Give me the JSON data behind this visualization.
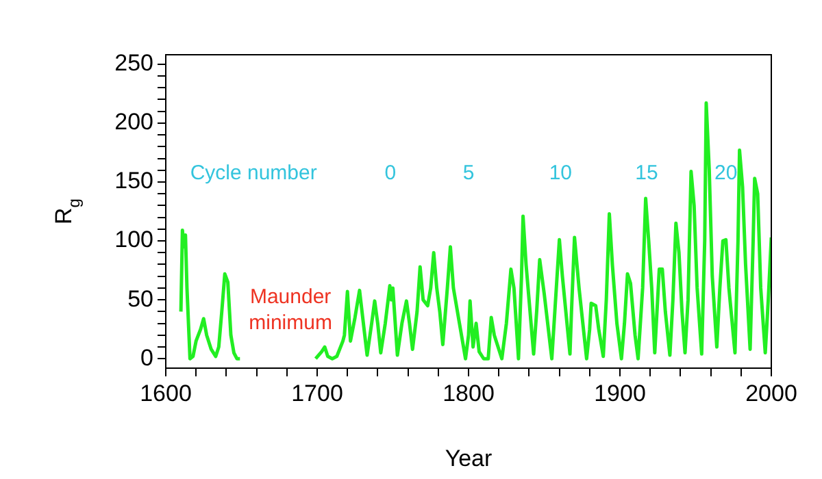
{
  "chart_data": {
    "type": "line",
    "xlabel": "Year",
    "ylabel": "R$_{g}$",
    "x": [
      1610,
      1611,
      1612,
      1613,
      1614,
      1616,
      1618,
      1620,
      1623,
      1625,
      1627,
      1630,
      1633,
      1635,
      1637,
      1639,
      1641,
      1643,
      1645,
      1647,
      1649,
      1675,
      1699,
      1703,
      1705,
      1707,
      1710,
      1713,
      1717,
      1718,
      1720,
      1722,
      1725,
      1728,
      1731,
      1733,
      1736,
      1738,
      1740,
      1742,
      1745,
      1748,
      1749,
      1750,
      1753,
      1756,
      1759,
      1761,
      1763,
      1766,
      1768,
      1770,
      1773,
      1775,
      1777,
      1779,
      1781,
      1783,
      1786,
      1788,
      1790,
      1794,
      1798,
      1800,
      1801,
      1803,
      1805,
      1807,
      1810,
      1813,
      1815,
      1817,
      1822,
      1825,
      1828,
      1830,
      1833,
      1835,
      1836,
      1838,
      1843,
      1845,
      1847,
      1850,
      1855,
      1857,
      1860,
      1862,
      1867,
      1868,
      1870,
      1873,
      1878,
      1880,
      1881,
      1884,
      1886,
      1889,
      1891,
      1893,
      1895,
      1898,
      1901,
      1903,
      1905,
      1907,
      1910,
      1912,
      1915,
      1917,
      1919,
      1921,
      1923,
      1926,
      1928,
      1930,
      1933,
      1935,
      1937,
      1939,
      1941,
      1943,
      1945,
      1947,
      1949,
      1951,
      1954,
      1956,
      1957,
      1959,
      1961,
      1964,
      1966,
      1968,
      1970,
      1972,
      1976,
      1978,
      1979,
      1981,
      1983,
      1986,
      1988,
      1989,
      1991,
      1993,
      1996,
      1998,
      2000
    ],
    "series": [
      {
        "color": "#22ee22",
        "values": [
          40,
          109,
          95,
          105,
          60,
          0,
          2,
          15,
          25,
          34,
          20,
          8,
          2,
          10,
          40,
          72,
          65,
          20,
          5,
          0,
          0,
          null,
          0,
          6,
          10,
          2,
          0,
          2,
          15,
          20,
          57,
          15,
          35,
          58,
          25,
          3,
          30,
          49,
          30,
          5,
          30,
          62,
          50,
          60,
          3,
          30,
          49,
          30,
          8,
          40,
          78,
          50,
          45,
          60,
          90,
          60,
          40,
          12,
          60,
          95,
          60,
          30,
          0,
          20,
          49,
          10,
          30,
          6,
          0,
          0,
          35,
          20,
          0,
          30,
          76,
          60,
          0,
          70,
          121,
          80,
          4,
          40,
          84,
          55,
          0,
          40,
          101,
          70,
          4,
          40,
          103,
          60,
          0,
          25,
          47,
          45,
          25,
          2,
          50,
          123,
          80,
          30,
          0,
          30,
          72,
          64,
          20,
          0,
          60,
          136,
          100,
          60,
          5,
          76,
          76,
          40,
          3,
          50,
          115,
          90,
          40,
          5,
          50,
          159,
          130,
          60,
          4,
          100,
          217,
          160,
          70,
          10,
          60,
          100,
          101,
          60,
          5,
          100,
          177,
          146,
          80,
          8,
          100,
          153,
          140,
          60,
          5,
          50,
          103
        ]
      }
    ],
    "xlim": [
      1600,
      2000
    ],
    "xticks": [
      1600,
      {
        "value": 1620,
        "label": null
      },
      {
        "value": 1640,
        "label": null
      },
      {
        "value": 1660,
        "label": null
      },
      {
        "value": 1680,
        "label": null
      },
      1700,
      {
        "value": 1720,
        "label": null
      },
      {
        "value": 1740,
        "label": null
      },
      {
        "value": 1760,
        "label": null
      },
      {
        "value": 1780,
        "label": null
      },
      1800,
      {
        "value": 1820,
        "label": null
      },
      {
        "value": 1840,
        "label": null
      },
      {
        "value": 1860,
        "label": null
      },
      {
        "value": 1880,
        "label": null
      },
      1900,
      {
        "value": 1920,
        "label": null
      },
      {
        "value": 1940,
        "label": null
      },
      {
        "value": 1960,
        "label": null
      },
      {
        "value": 1980,
        "label": null
      },
      2000
    ],
    "ylim": [
      -8,
      258
    ],
    "yticks": [
      0,
      {
        "value": 10,
        "label": null
      },
      {
        "value": 20,
        "label": null
      },
      {
        "value": 30,
        "label": null
      },
      {
        "value": 40,
        "label": null
      },
      50,
      {
        "value": 60,
        "label": null
      },
      {
        "value": 70,
        "label": null
      },
      {
        "value": 80,
        "label": null
      },
      {
        "value": 90,
        "label": null
      },
      100,
      {
        "value": 110,
        "label": null
      },
      {
        "value": 120,
        "label": null
      },
      {
        "value": 130,
        "label": null
      },
      {
        "value": 140,
        "label": null
      },
      150,
      {
        "value": 160,
        "label": null
      },
      {
        "value": 170,
        "label": null
      },
      {
        "value": 180,
        "label": null
      },
      {
        "value": 190,
        "label": null
      },
      200,
      {
        "value": 210,
        "label": null
      },
      {
        "value": 220,
        "label": null
      },
      {
        "value": 230,
        "label": null
      },
      {
        "value": 240,
        "label": null
      },
      250
    ],
    "grid": false,
    "legend": false,
    "marker": "none",
    "line_style": "solid",
    "annotations": [
      "Cycle number",
      "0",
      "5",
      "10",
      "15",
      "20",
      "Maunder minimum"
    ]
  }
}
